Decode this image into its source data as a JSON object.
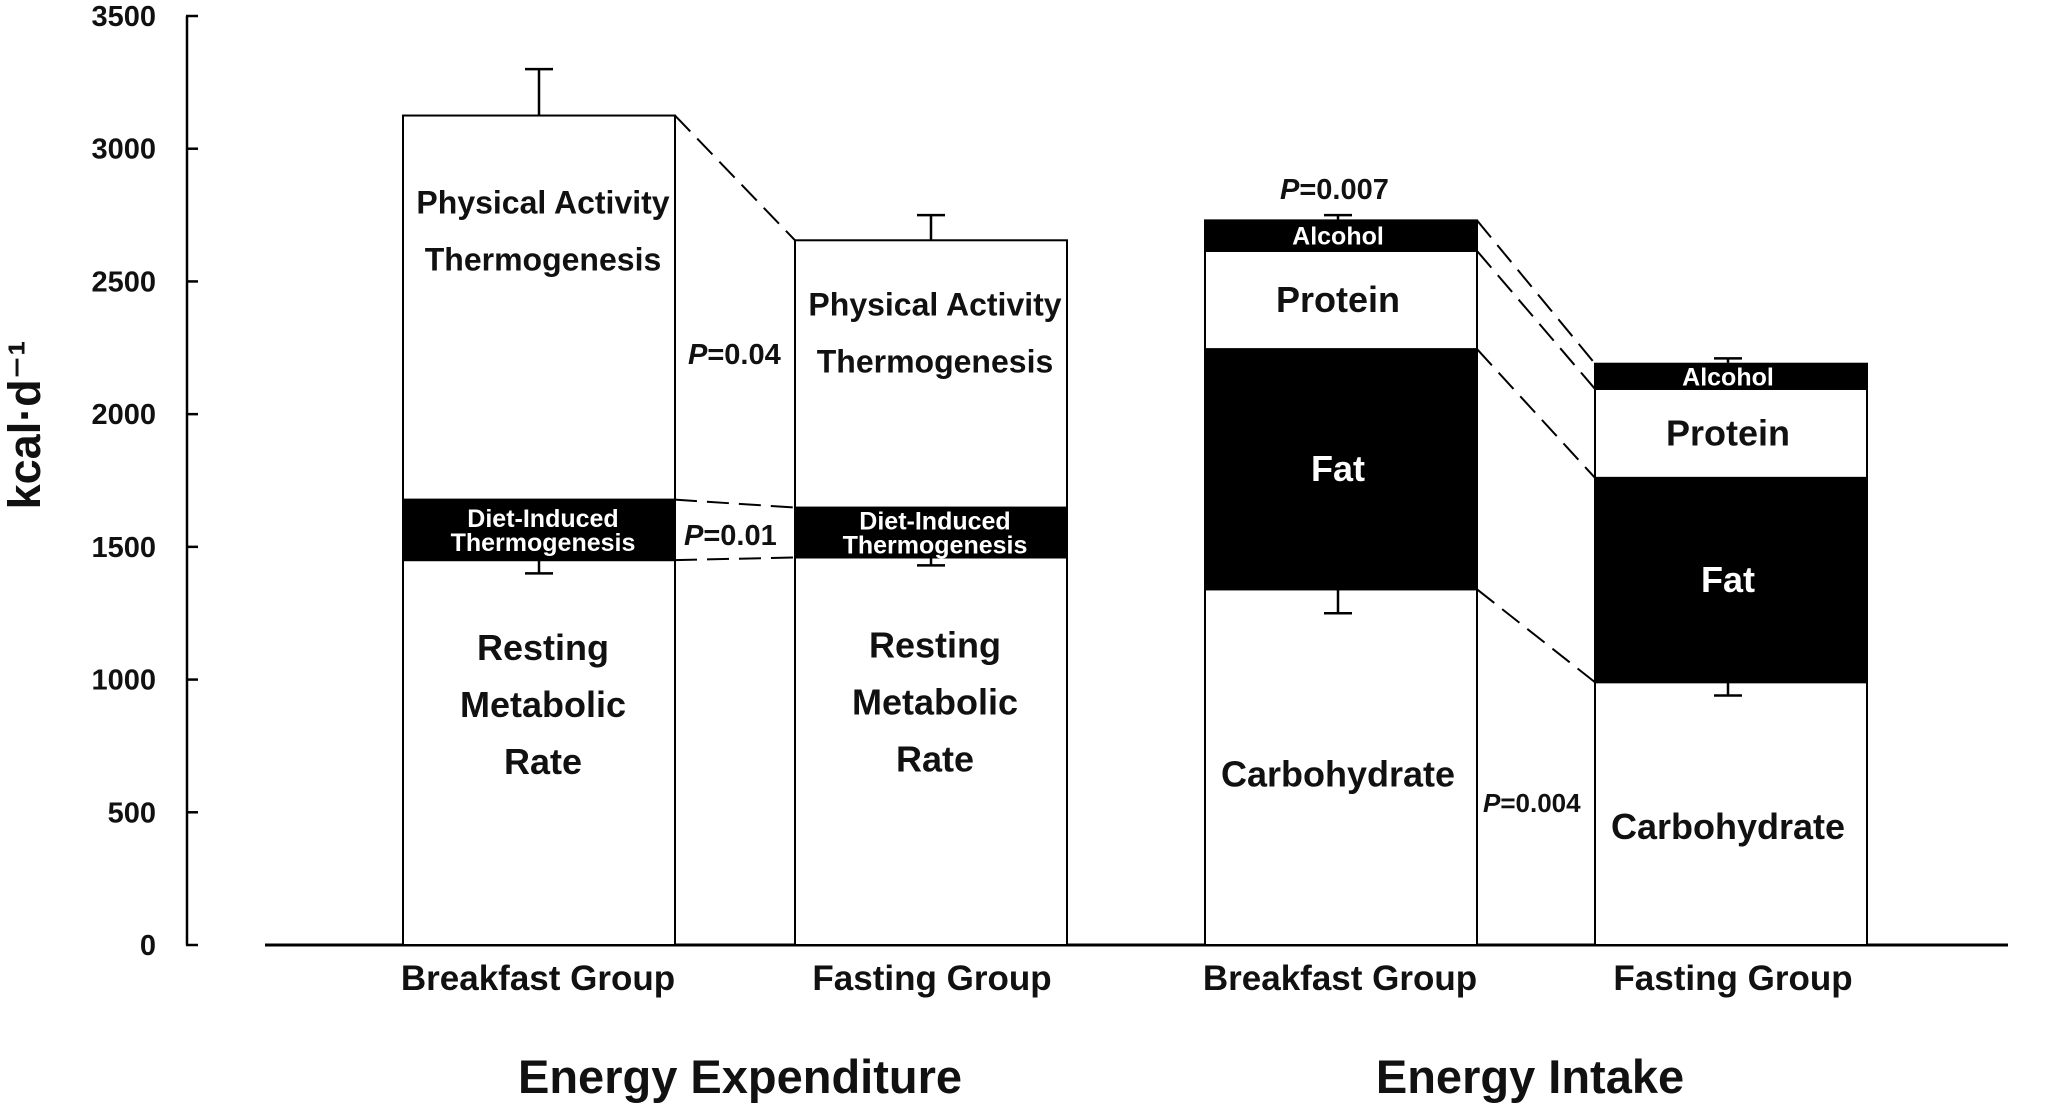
{
  "chart_data": {
    "type": "bar",
    "stacked": true,
    "title": "",
    "ylabel": "kcal·d⁻¹",
    "ylim": [
      0,
      3500
    ],
    "yticks": [
      "0",
      "500",
      "1000",
      "1500",
      "2000",
      "2500",
      "3000",
      "3500"
    ],
    "grid": false,
    "groups": [
      {
        "name": "Energy Expenditure",
        "bars": [
          {
            "category": "Breakfast Group",
            "segments": [
              {
                "label": "Resting Metabolic Rate",
                "value": 1450,
                "error": 50,
                "fill": "#ffffff"
              },
              {
                "label": "Diet-Induced Thermogenesis",
                "value": 228,
                "error": 12,
                "fill": "#000000"
              },
              {
                "label": "Physical Activity Thermogenesis",
                "value": 1447,
                "error": 175,
                "fill": "#ffffff"
              }
            ]
          },
          {
            "category": "Fasting Group",
            "segments": [
              {
                "label": "Resting Metabolic Rate",
                "value": 1460,
                "error": 30,
                "fill": "#ffffff"
              },
              {
                "label": "Diet-Induced Thermogenesis",
                "value": 188,
                "error": 6,
                "fill": "#000000"
              },
              {
                "label": "Physical Activity Thermogenesis",
                "value": 1007,
                "error": 95,
                "fill": "#ffffff"
              }
            ]
          }
        ]
      },
      {
        "name": "Energy Intake",
        "bars": [
          {
            "category": "Breakfast Group",
            "segments": [
              {
                "label": "Carbohydrate",
                "value": 1340,
                "error": 90,
                "fill": "#ffffff"
              },
              {
                "label": "Fat",
                "value": 905,
                "error": 50,
                "fill": "#000000"
              },
              {
                "label": "Protein",
                "value": 370,
                "error": 0,
                "fill": "#ffffff"
              },
              {
                "label": "Alcohol",
                "value": 115,
                "error": 20,
                "fill": "#000000"
              }
            ]
          },
          {
            "category": "Fasting Group",
            "segments": [
              {
                "label": "Carbohydrate",
                "value": 990,
                "error": 50,
                "fill": "#ffffff"
              },
              {
                "label": "Fat",
                "value": 770,
                "error": 55,
                "fill": "#000000"
              },
              {
                "label": "Protein",
                "value": 335,
                "error": 0,
                "fill": "#ffffff"
              },
              {
                "label": "Alcohol",
                "value": 95,
                "error": 20,
                "fill": "#000000"
              }
            ]
          }
        ]
      }
    ],
    "annotations": [
      {
        "text": "P=0.04",
        "italic_part": "P",
        "rest": "=0.04"
      },
      {
        "text": "P=0.01",
        "italic_part": "P",
        "rest": "=0.01"
      },
      {
        "text": "P=0.007",
        "italic_part": "P",
        "rest": "=0.007"
      },
      {
        "text": "P=0.004",
        "italic_part": "P",
        "rest": "=0.004"
      }
    ]
  }
}
